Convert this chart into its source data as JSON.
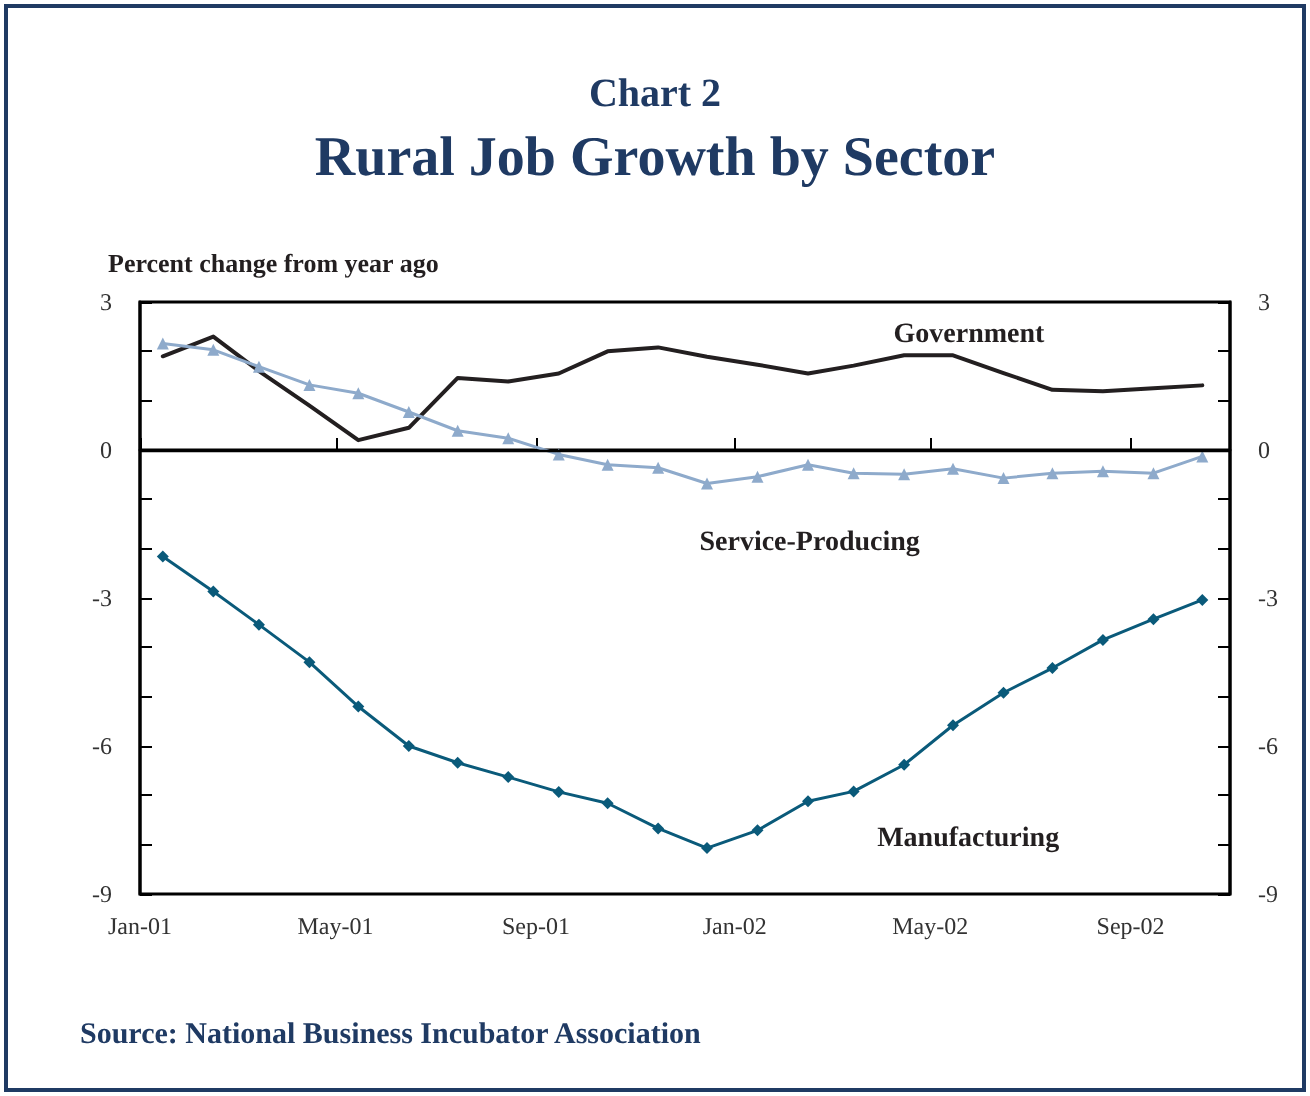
{
  "chart_data": {
    "type": "line",
    "subtitle": "Chart 2",
    "title": "Rural Job Growth by Sector",
    "ylabel": "Percent change from year ago",
    "x": [
      "2001-01-15",
      "2001-02-15",
      "2001-03-15",
      "2001-04-15",
      "2001-05-15",
      "2001-06-15",
      "2001-07-15",
      "2001-08-15",
      "2001-09-15",
      "2001-10-15",
      "2001-11-15",
      "2001-12-15",
      "2002-01-15",
      "2002-02-15",
      "2002-03-15",
      "2002-04-15",
      "2002-05-15",
      "2002-06-15",
      "2002-07-15",
      "2002-08-15",
      "2002-09-15",
      "2002-10-15"
    ],
    "series": [
      {
        "name": "Government",
        "color": "#231f20",
        "marker": "none",
        "values": [
          1.9,
          2.3,
          1.6,
          0.9,
          0.2,
          0.45,
          1.46,
          1.39,
          1.55,
          2.0,
          2.08,
          1.89,
          1.73,
          1.55,
          1.71,
          1.92,
          1.92,
          1.56,
          1.22,
          1.19,
          1.25,
          1.31
        ]
      },
      {
        "name": "Service-Producing",
        "color": "#8eaacb",
        "marker": "triangle",
        "values": [
          2.16,
          2.03,
          1.69,
          1.32,
          1.15,
          0.77,
          0.39,
          0.24,
          -0.09,
          -0.3,
          -0.36,
          -0.68,
          -0.54,
          -0.3,
          -0.47,
          -0.49,
          -0.38,
          -0.57,
          -0.47,
          -0.43,
          -0.47,
          -0.13
        ]
      },
      {
        "name": "Manufacturing",
        "color": "#0a5a7a",
        "marker": "diamond",
        "values": [
          -2.16,
          -2.87,
          -3.54,
          -4.3,
          -5.2,
          -6.0,
          -6.34,
          -6.63,
          -6.93,
          -7.16,
          -7.67,
          -8.07,
          -7.71,
          -7.12,
          -6.92,
          -6.38,
          -5.58,
          -4.92,
          -4.42,
          -3.85,
          -3.43,
          -3.04
        ]
      }
    ],
    "xlim": [
      "2001-01-01",
      "2002-11-01"
    ],
    "xticks": [
      {
        "value": "2001-01-01",
        "label": "Jan-01"
      },
      {
        "value": "2001-05-01",
        "label": "May-01"
      },
      {
        "value": "2001-09-01",
        "label": "Sep-01"
      },
      {
        "value": "2002-01-01",
        "label": "Jan-02"
      },
      {
        "value": "2002-05-01",
        "label": "May-02"
      },
      {
        "value": "2002-09-01",
        "label": "Sep-02"
      }
    ],
    "ylim": [
      -9,
      3
    ],
    "yticks": [
      -9,
      {
        "value": -8,
        "label": null
      },
      {
        "value": -7,
        "label": null
      },
      -6,
      {
        "value": -5,
        "label": null
      },
      {
        "value": -4,
        "label": null
      },
      -3,
      {
        "value": -2,
        "label": null
      },
      {
        "value": -1,
        "label": null
      },
      0,
      {
        "value": 1,
        "label": null
      },
      {
        "value": 2,
        "label": null
      },
      3
    ],
    "y2lim": [
      -9,
      3
    ],
    "y2ticks": [
      -9,
      {
        "value": -8,
        "label": null
      },
      {
        "value": -7,
        "label": null
      },
      -6,
      {
        "value": -5,
        "label": null
      },
      {
        "value": -4,
        "label": null
      },
      -3,
      {
        "value": -2,
        "label": null
      },
      {
        "value": -1,
        "label": null
      },
      0,
      {
        "value": 1,
        "label": null
      },
      {
        "value": 2,
        "label": null
      },
      3
    ],
    "ref_lines": [
      {
        "axis": "y",
        "value": 0,
        "color": "#000000"
      }
    ],
    "grid": false,
    "annotations": [
      "Source: National Business Incubator Association"
    ]
  }
}
